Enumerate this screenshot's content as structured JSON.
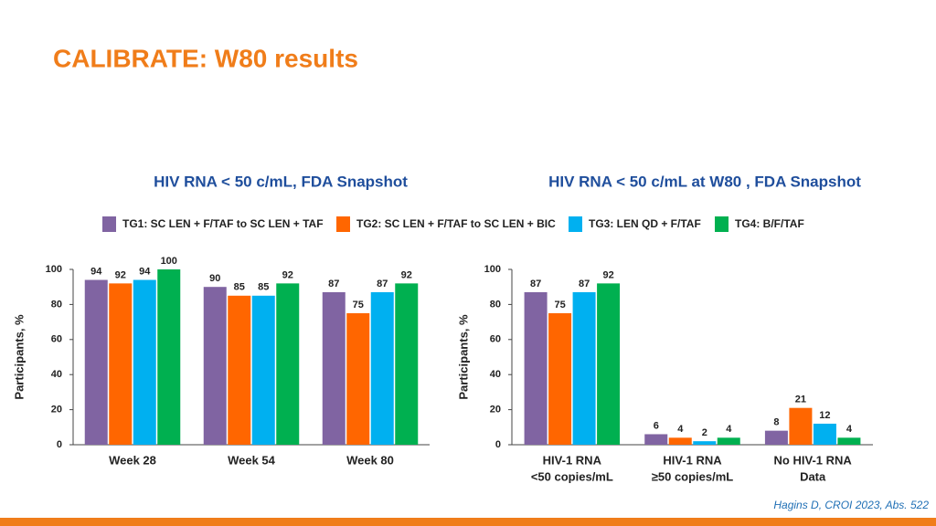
{
  "title": "CALIBRATE: W80 results",
  "source": "Hagins D, CROI 2023, Abs. 522",
  "chart_data": [
    {
      "type": "bar",
      "title": "HIV RNA < 50 c/mL, FDA Snapshot",
      "y_label": "Participants, %",
      "categories": [
        [
          "Week 28"
        ],
        [
          "Week 54"
        ],
        [
          "Week 80"
        ]
      ],
      "series": [
        {
          "name": "TG1: SC LEN + F/TAF to SC LEN + TAF",
          "color": "#8064a2",
          "values": [
            94,
            90,
            87
          ]
        },
        {
          "name": "TG2: SC LEN + F/TAF to SC LEN + BIC",
          "color": "#ff6600",
          "values": [
            92,
            85,
            75
          ]
        },
        {
          "name": "TG3: LEN QD + F/TAF",
          "color": "#00b0f0",
          "values": [
            94,
            85,
            87
          ]
        },
        {
          "name": "TG4: B/F/TAF",
          "color": "#00b050",
          "values": [
            100,
            92,
            92
          ]
        }
      ],
      "ylim": [
        0,
        100
      ],
      "yticks": [
        0,
        20,
        40,
        60,
        80,
        100
      ],
      "grid": false
    },
    {
      "type": "bar",
      "title": "HIV RNA < 50 c/mL at W80 , FDA Snapshot",
      "y_label": "Participants, %",
      "categories": [
        [
          "HIV-1 RNA",
          "<50 copies/mL"
        ],
        [
          "HIV-1 RNA",
          "≥50 copies/mL"
        ],
        [
          "No HIV-1 RNA",
          "Data"
        ]
      ],
      "series": [
        {
          "color": "#8064a2",
          "values": [
            87,
            6,
            8
          ]
        },
        {
          "color": "#ff6600",
          "values": [
            75,
            4,
            21
          ]
        },
        {
          "color": "#00b0f0",
          "values": [
            87,
            2,
            12
          ]
        },
        {
          "color": "#00b050",
          "values": [
            92,
            4,
            4
          ]
        }
      ],
      "ylim": [
        0,
        100
      ],
      "yticks": [
        0,
        20,
        40,
        60,
        80,
        100
      ],
      "grid": false
    }
  ]
}
